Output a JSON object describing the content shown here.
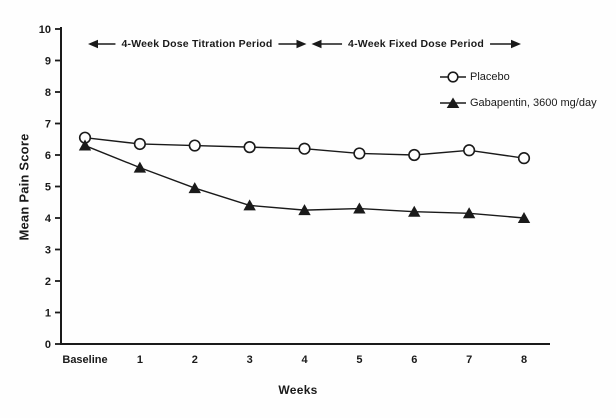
{
  "figure": {
    "background": "#fefefe",
    "ink": "#1a1a1a"
  },
  "chart_data": {
    "type": "line",
    "title": "",
    "xlabel": "Weeks",
    "ylabel": "Mean Pain Score",
    "categories": [
      "Baseline",
      "1",
      "2",
      "3",
      "4",
      "5",
      "6",
      "7",
      "8"
    ],
    "y_ticks": [
      "0",
      "1",
      "2",
      "3",
      "4",
      "5",
      "6",
      "7",
      "8",
      "9",
      "10"
    ],
    "ylim": [
      0,
      10
    ],
    "grid": false,
    "legend_position": "upper-right",
    "series": [
      {
        "name": "Placebo",
        "marker": "open-circle",
        "color": "#1a1a1a",
        "values": [
          6.55,
          6.35,
          6.3,
          6.25,
          6.2,
          6.05,
          6.0,
          6.15,
          5.9
        ]
      },
      {
        "name": "Gabapentin, 3600 mg/day",
        "marker": "filled-triangle",
        "color": "#1a1a1a",
        "values": [
          6.3,
          5.6,
          4.95,
          4.4,
          4.25,
          4.3,
          4.2,
          4.15,
          4.0
        ]
      }
    ],
    "annotations": [
      {
        "label": "4-Week Dose Titration Period",
        "from_category": "Baseline",
        "to_category": "4"
      },
      {
        "label": "4-Week Fixed Dose Period",
        "from_category": "4",
        "to_category": "8"
      }
    ]
  }
}
